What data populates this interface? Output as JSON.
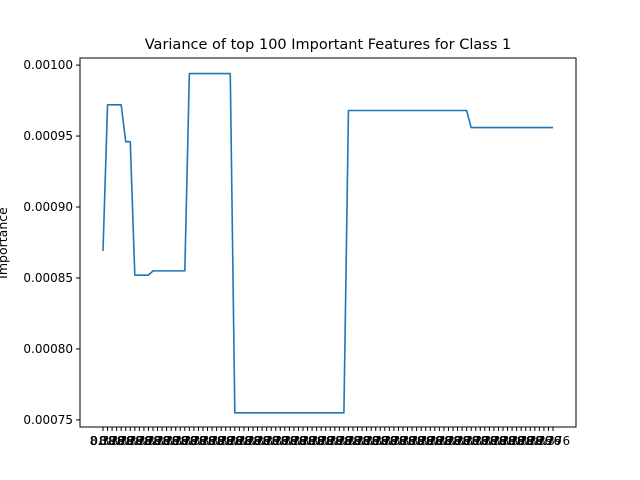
{
  "chart_data": {
    "type": "line",
    "title": "Variance of top 100 Important Features for Class 1",
    "xlabel": "",
    "ylabel": "Importance",
    "ylim": [
      0.000745,
      0.001005
    ],
    "yticks": [
      "0.00075",
      "0.00080",
      "0.00085",
      "0.00090",
      "0.00095",
      "0.00100"
    ],
    "ytick_values": [
      0.00075,
      0.0008,
      0.00085,
      0.0009,
      0.00095,
      0.001
    ],
    "x_tick_label_fragments": [
      "8.79",
      "0.376"
    ],
    "x": [
      0,
      1,
      2,
      3,
      4,
      5,
      6,
      7,
      8,
      9,
      10,
      11,
      12,
      13,
      14,
      15,
      16,
      17,
      18,
      19,
      20,
      21,
      22,
      23,
      24,
      25,
      26,
      27,
      28,
      29,
      30,
      31,
      32,
      33,
      34,
      35,
      36,
      37,
      38,
      39,
      40,
      41,
      42,
      43,
      44,
      45,
      46,
      47,
      48,
      49,
      50,
      51,
      52,
      53,
      54,
      55,
      56,
      57,
      58,
      59,
      60,
      61,
      62,
      63,
      64,
      65,
      66,
      67,
      68,
      69,
      70,
      71,
      72,
      73,
      74,
      75,
      76,
      77,
      78,
      79,
      80,
      81,
      82,
      83,
      84,
      85,
      86,
      87,
      88,
      89,
      90,
      91,
      92,
      93,
      94,
      95,
      96,
      97,
      98,
      99
    ],
    "grid": false,
    "legend": "none",
    "series": [
      {
        "color": "#1f77b4",
        "values": [
          0.000869,
          0.000972,
          0.000972,
          0.000972,
          0.000972,
          0.000946,
          0.000946,
          0.000852,
          0.000852,
          0.000852,
          0.000852,
          0.000855,
          0.000855,
          0.000855,
          0.000855,
          0.000855,
          0.000855,
          0.000855,
          0.000855,
          0.000994,
          0.000994,
          0.000994,
          0.000994,
          0.000994,
          0.000994,
          0.000994,
          0.000994,
          0.000994,
          0.000994,
          0.000755,
          0.000755,
          0.000755,
          0.000755,
          0.000755,
          0.000755,
          0.000755,
          0.000755,
          0.000755,
          0.000755,
          0.000755,
          0.000755,
          0.000755,
          0.000755,
          0.000755,
          0.000755,
          0.000755,
          0.000755,
          0.000755,
          0.000755,
          0.000755,
          0.000755,
          0.000755,
          0.000755,
          0.000755,
          0.000968,
          0.000968,
          0.000968,
          0.000968,
          0.000968,
          0.000968,
          0.000968,
          0.000968,
          0.000968,
          0.000968,
          0.000968,
          0.000968,
          0.000968,
          0.000968,
          0.000968,
          0.000968,
          0.000968,
          0.000968,
          0.000968,
          0.000968,
          0.000968,
          0.000968,
          0.000968,
          0.000968,
          0.000968,
          0.000968,
          0.000968,
          0.000956,
          0.000956,
          0.000956,
          0.000956,
          0.000956,
          0.000956,
          0.000956,
          0.000956,
          0.000956,
          0.000956,
          0.000956,
          0.000956,
          0.000956,
          0.000956,
          0.000956,
          0.000956,
          0.000956,
          0.000956,
          0.000956
        ]
      }
    ]
  }
}
